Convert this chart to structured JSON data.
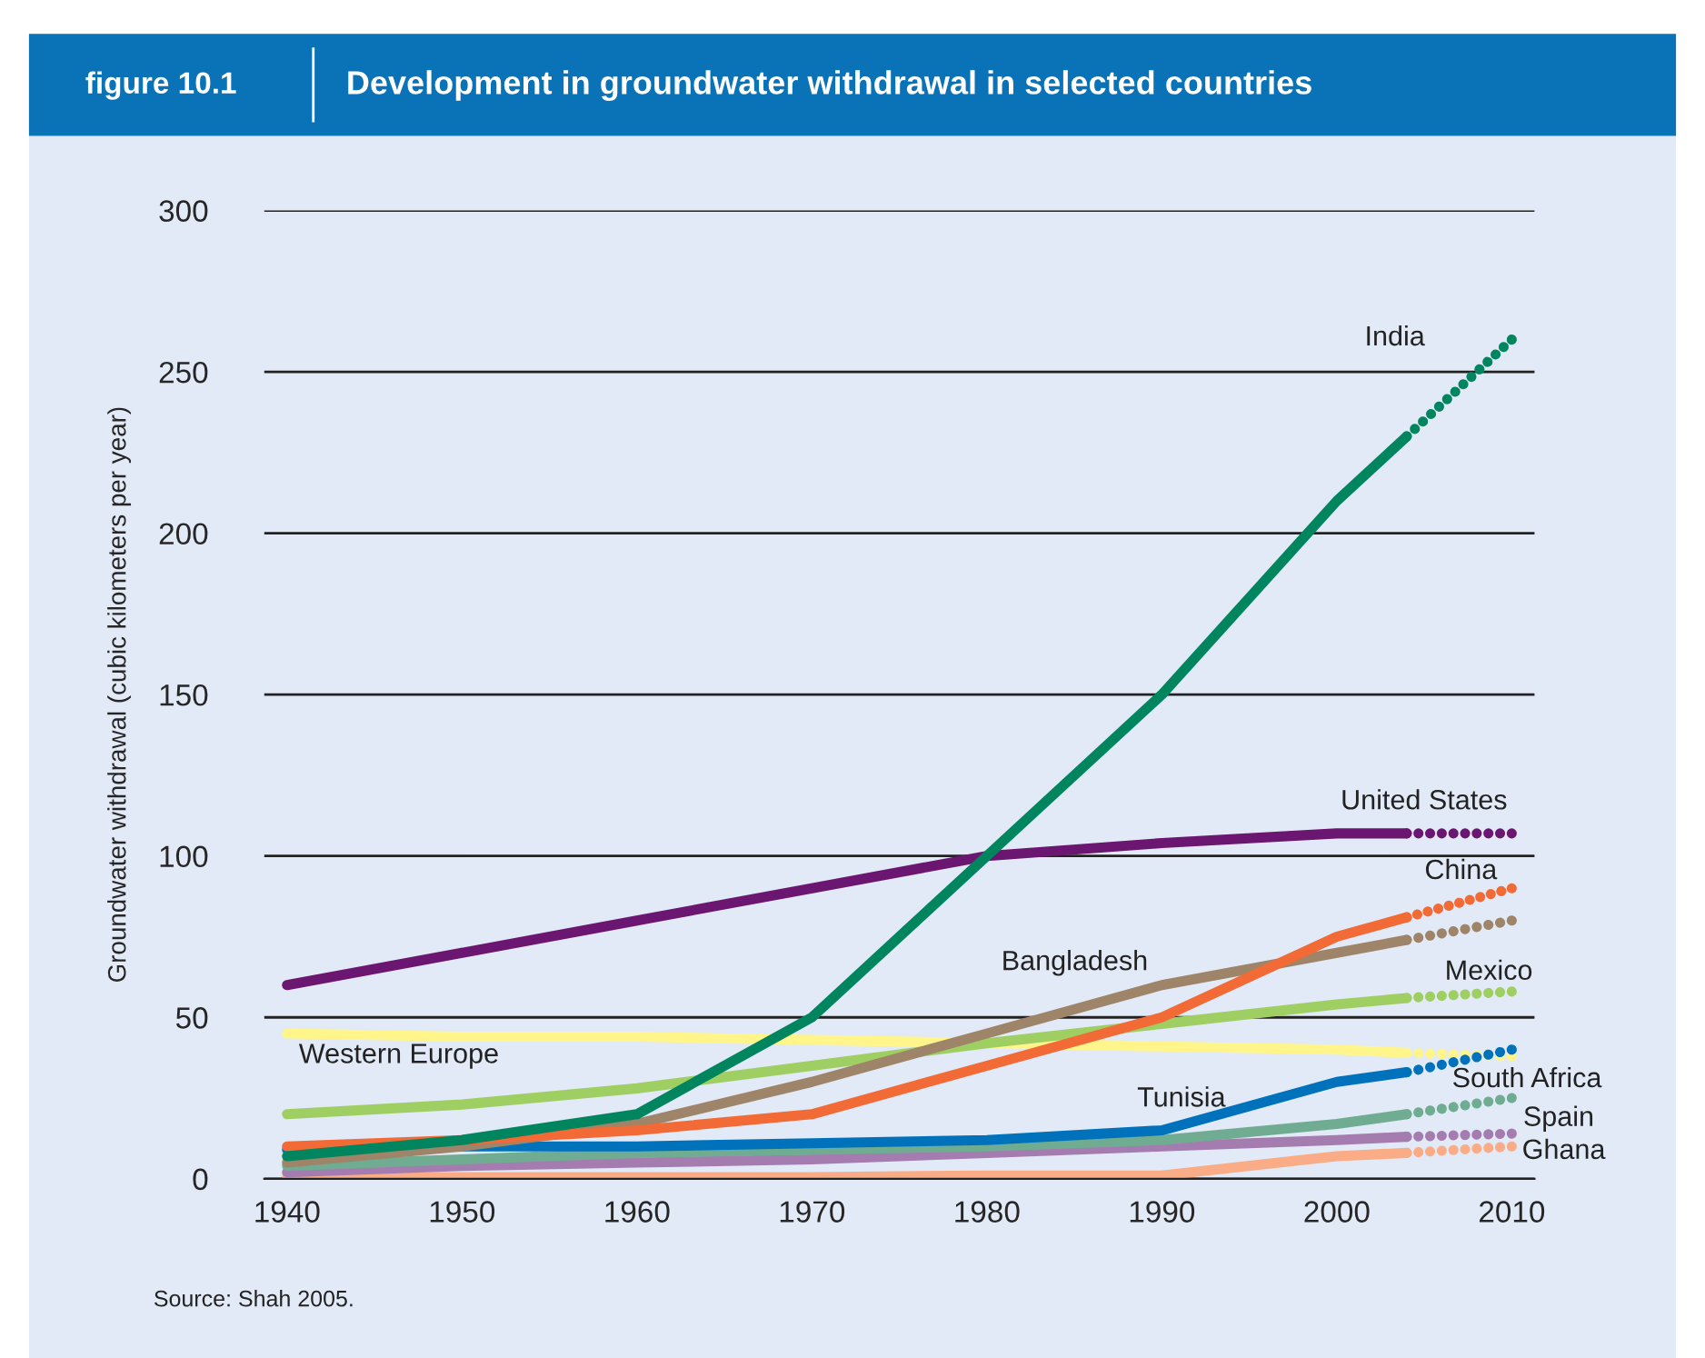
{
  "chart_data": {
    "type": "line",
    "title": "Development in groundwater withdrawal in selected countries",
    "subtitle": "figure 10.1",
    "ylabel": "Groundwater withdrawal (cubic kilometers per year)",
    "xlim": [
      1938.7,
      2011.3
    ],
    "xticks": [
      1940,
      1950,
      1960,
      1970,
      1980,
      1990,
      2000,
      2010
    ],
    "ylim": [
      0,
      300
    ],
    "yticks": [
      0,
      50,
      100,
      150,
      200,
      250,
      300
    ],
    "grid": "y",
    "marker": "none",
    "series": [
      {
        "name": "Western Europe",
        "color": "#fff58a",
        "line_style": "solid",
        "x": [
          1940,
          1950,
          1960,
          1970,
          1980,
          1990,
          2000,
          2004
        ],
        "values": [
          45,
          44,
          44,
          43,
          42,
          41,
          40,
          39
        ]
      },
      {
        "color": "#fff58a",
        "line_style": "dotted",
        "x": [
          2004,
          2010
        ],
        "values": [
          39,
          38
        ]
      },
      {
        "color": "#f9ac86",
        "line_style": "solid",
        "x": [
          1940,
          1950,
          1960,
          1970,
          1980,
          1990,
          2000,
          2004
        ],
        "values": [
          0.5,
          0.5,
          0.5,
          0.5,
          1,
          1,
          7,
          8
        ]
      },
      {
        "name": "Ghana",
        "color": "#f9ac86",
        "line_style": "dotted",
        "x": [
          2004,
          2010
        ],
        "values": [
          8,
          10
        ]
      },
      {
        "color": "#a57cb0",
        "line_style": "solid",
        "x": [
          1940,
          1950,
          1960,
          1970,
          1980,
          1990,
          2000,
          2004
        ],
        "values": [
          2,
          4,
          5,
          6,
          8,
          10,
          12,
          13
        ]
      },
      {
        "name": "Spain",
        "color": "#a57cb0",
        "line_style": "dotted",
        "x": [
          2004,
          2010
        ],
        "values": [
          13,
          14
        ]
      },
      {
        "name": "South Africa",
        "color": "#6fac92",
        "line_style": "solid",
        "x": [
          1940,
          1950,
          1960,
          1970,
          1980,
          1990,
          2000,
          2004
        ],
        "values": [
          4,
          6,
          8,
          9,
          10,
          12,
          17,
          20
        ]
      },
      {
        "color": "#6fac92",
        "line_style": "dotted",
        "x": [
          2004,
          2010
        ],
        "values": [
          20,
          25
        ]
      },
      {
        "name": "Tunisia",
        "color": "#0072bc",
        "line_style": "solid",
        "x": [
          1940,
          1950,
          1960,
          1970,
          1980,
          1990,
          2000,
          2004
        ],
        "values": [
          9,
          10,
          10,
          11,
          12,
          15,
          30,
          33
        ]
      },
      {
        "color": "#0072bc",
        "line_style": "dotted",
        "x": [
          2004,
          2010
        ],
        "values": [
          33,
          40
        ]
      },
      {
        "name": "Mexico",
        "color": "#9fce63",
        "line_style": "solid",
        "x": [
          1940,
          1950,
          1960,
          1970,
          1980,
          1990,
          2000,
          2004
        ],
        "values": [
          20,
          23,
          28,
          35,
          42,
          48,
          54,
          56
        ]
      },
      {
        "color": "#9fce63",
        "line_style": "dotted",
        "x": [
          2004,
          2010
        ],
        "values": [
          56,
          58
        ]
      },
      {
        "name": "Bangladesh",
        "color": "#9e8468",
        "line_style": "solid",
        "x": [
          1940,
          1950,
          1960,
          1970,
          1980,
          1990,
          2000,
          2004
        ],
        "values": [
          5,
          10,
          17,
          30,
          45,
          60,
          70,
          74
        ]
      },
      {
        "color": "#9e8468",
        "line_style": "dotted",
        "x": [
          2004,
          2010
        ],
        "values": [
          74,
          80
        ]
      },
      {
        "color": "#f26a35",
        "line_style": "solid",
        "x": [
          1940,
          1950,
          1960,
          1970,
          1980,
          1990,
          2000,
          2004
        ],
        "values": [
          10,
          12,
          15,
          20,
          35,
          50,
          75,
          81
        ]
      },
      {
        "name": "China",
        "color": "#f26a35",
        "line_style": "dotted",
        "x": [
          2004,
          2010
        ],
        "values": [
          81,
          90
        ]
      },
      {
        "name": "United States",
        "color": "#6b1670",
        "line_style": "solid",
        "x": [
          1940,
          1950,
          1960,
          1970,
          1980,
          1990,
          2000,
          2004
        ],
        "values": [
          60,
          70,
          80,
          90,
          100,
          104,
          107,
          107
        ]
      },
      {
        "color": "#6b1670",
        "line_style": "dotted",
        "x": [
          2004,
          2010
        ],
        "values": [
          107,
          107
        ]
      },
      {
        "color": "#00855f",
        "line_style": "solid",
        "x": [
          1940,
          1950,
          1960,
          1970,
          1980,
          1990,
          2000,
          2004
        ],
        "values": [
          7,
          12,
          20,
          50,
          100,
          150,
          210,
          230
        ]
      },
      {
        "name": "India",
        "color": "#00855f",
        "line_style": "dotted",
        "x": [
          2004,
          2010
        ],
        "values": [
          230,
          260
        ]
      }
    ],
    "annotations": [
      "Source: Shah 2005."
    ]
  }
}
